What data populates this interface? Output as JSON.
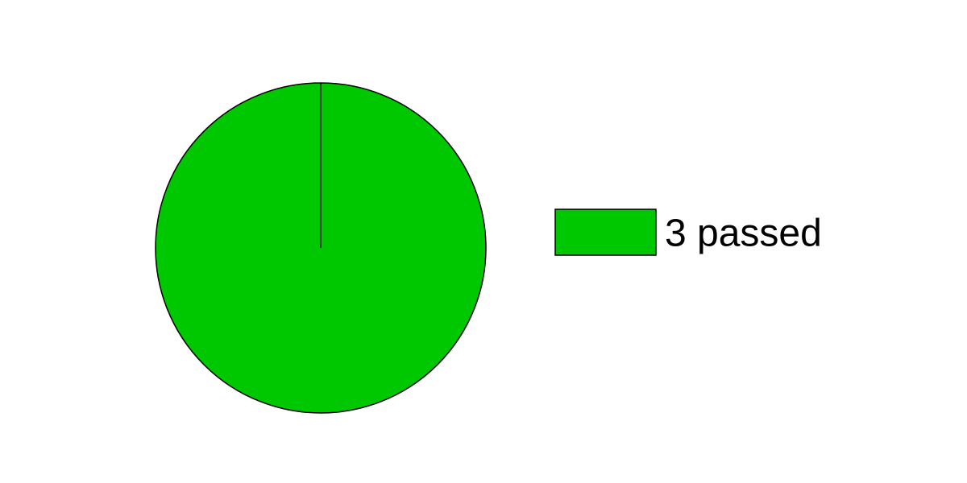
{
  "chart_data": {
    "type": "pie",
    "categories": [
      "3 passed"
    ],
    "values": [
      3
    ],
    "colors": [
      "#00c800"
    ]
  }
}
